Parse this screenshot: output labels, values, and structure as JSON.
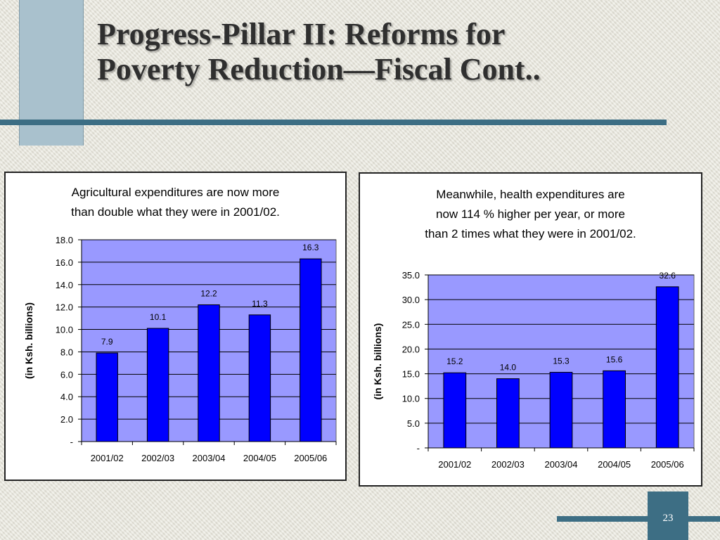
{
  "slide": {
    "title_line1": "Progress-Pillar II: Reforms for",
    "title_line2": "Poverty Reduction—Fiscal Cont..",
    "page_number": "23"
  },
  "colors": {
    "bar": "#0000ff",
    "plot_bg": "#9999ff",
    "accent": "#3d6e84",
    "sidebar": "#a9c1cd"
  },
  "chart_data": [
    {
      "type": "bar",
      "title_lines": [
        "Agricultural expenditures are now more",
        "than double what they were in 2001/02."
      ],
      "categories": [
        "2001/02",
        "2002/03",
        "2003/04",
        "2004/05",
        "2005/06"
      ],
      "values": [
        7.9,
        10.1,
        12.2,
        11.3,
        16.3
      ],
      "data_labels": [
        "7.9",
        "10.1",
        "12.2",
        "11.3",
        "16.3"
      ],
      "ylabel": "(in Ksh. billions)",
      "ylim": [
        0,
        18
      ],
      "yticks": [
        0,
        2,
        4,
        6,
        8,
        10,
        12,
        14,
        16,
        18
      ],
      "ytick_labels": [
        "-",
        "2.0",
        "4.0",
        "6.0",
        "8.0",
        "10.0",
        "12.0",
        "14.0",
        "16.0",
        "18.0"
      ],
      "grid": true,
      "legend": "none"
    },
    {
      "type": "bar",
      "title_lines": [
        "Meanwhile, health expenditures are",
        "now 114 % higher per year, or more",
        "than 2 times what they were in 2001/02."
      ],
      "categories": [
        "2001/02",
        "2002/03",
        "2003/04",
        "2004/05",
        "2005/06"
      ],
      "values": [
        15.2,
        14.0,
        15.3,
        15.6,
        32.6
      ],
      "data_labels": [
        "15.2",
        "14.0",
        "15.3",
        "15.6",
        "32.6"
      ],
      "ylabel": "(in Ksh. billions)",
      "ylim": [
        0,
        35
      ],
      "yticks": [
        0,
        5,
        10,
        15,
        20,
        25,
        30,
        35
      ],
      "ytick_labels": [
        "-",
        "5.0",
        "10.0",
        "15.0",
        "20.0",
        "25.0",
        "30.0",
        "35.0"
      ],
      "grid": true,
      "legend": "none"
    }
  ]
}
